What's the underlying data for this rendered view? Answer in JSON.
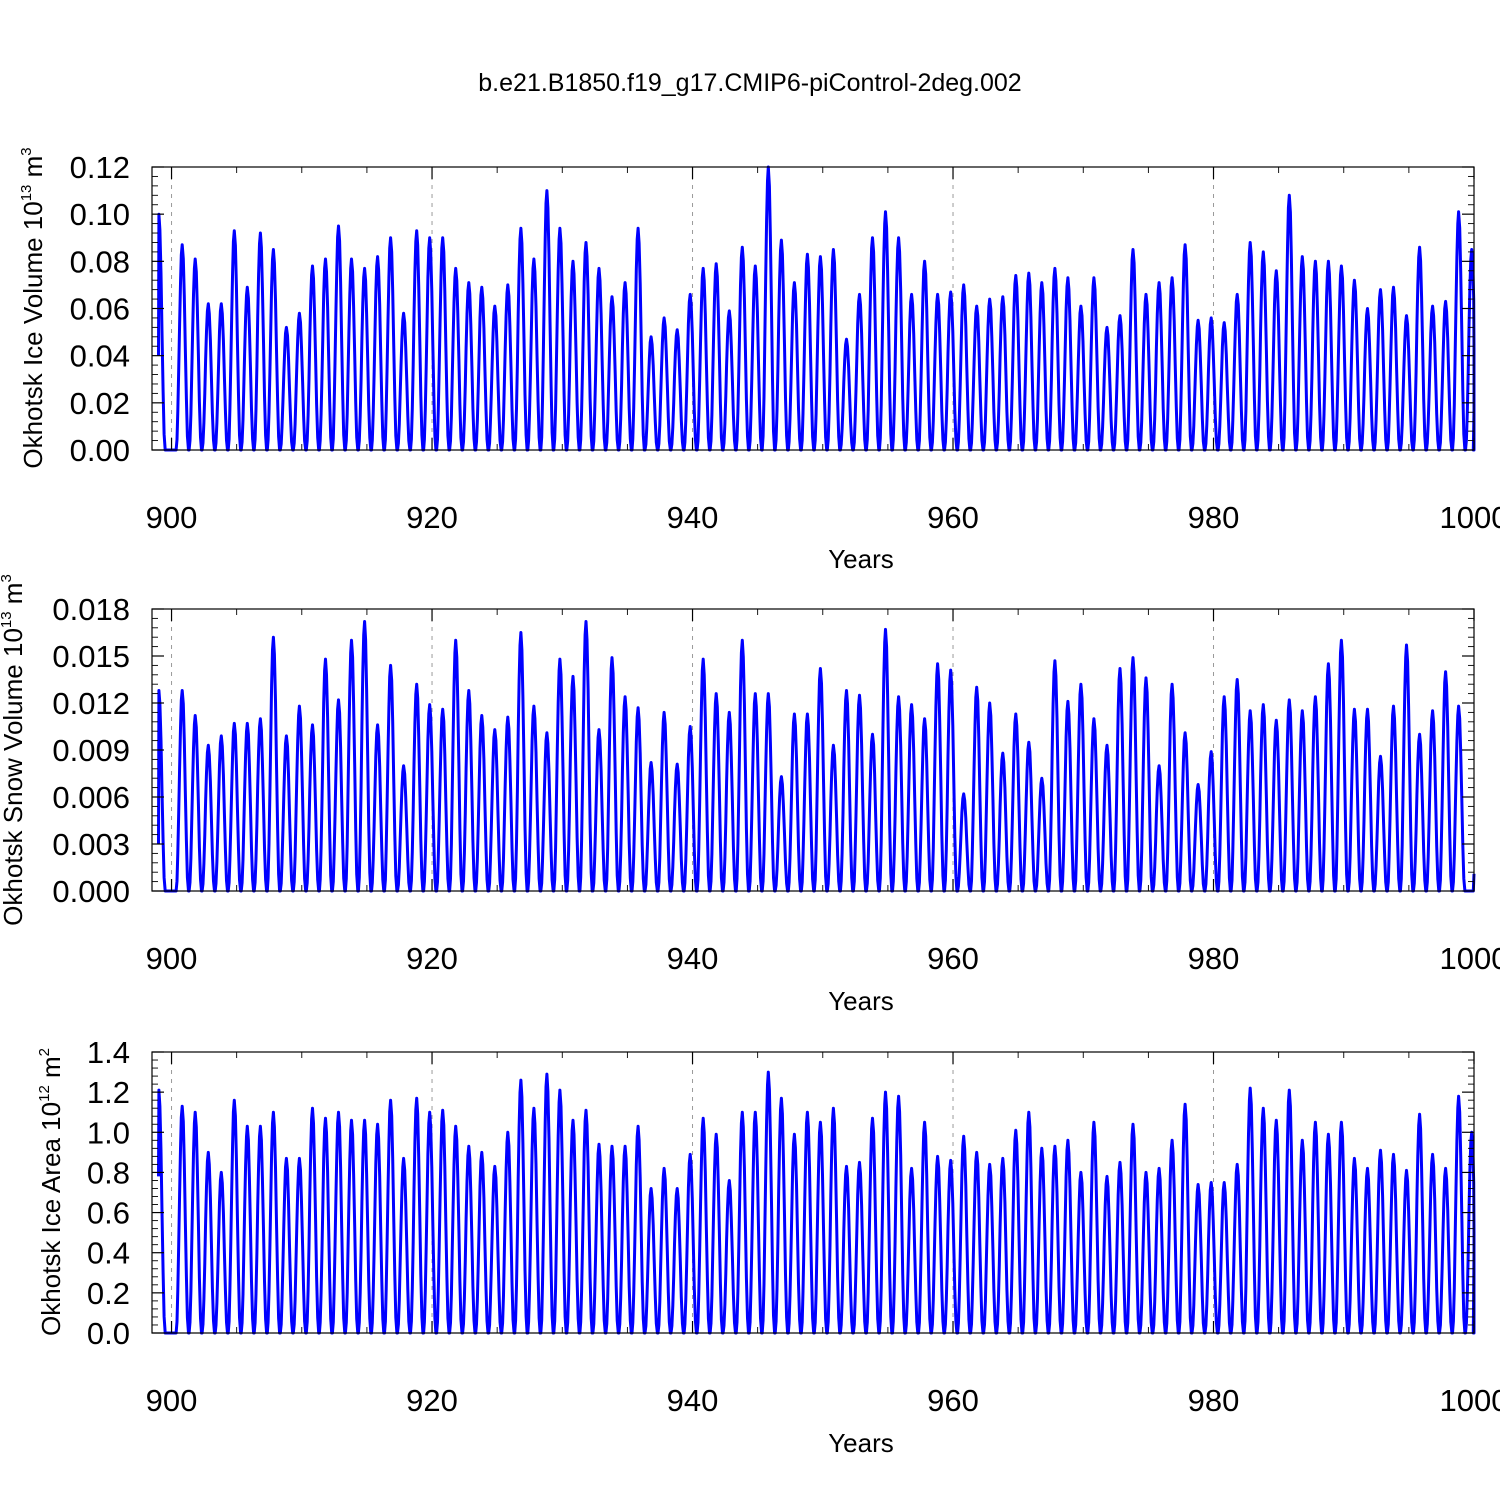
{
  "title": "b.e21.B1850.f19_g17.CMIP6-piControl-2deg.002",
  "colors": {
    "series": "#0000ff",
    "frame": "#000000",
    "grid": "#9a9a9a"
  },
  "chart_data": [
    {
      "type": "line",
      "ylabel": {
        "text": "Okhotsk Ice Volume 10",
        "exp": "13",
        "unit": " m",
        "unit_exp": "3"
      },
      "xlabel": "Years",
      "xlim": [
        898.5,
        1000
      ],
      "ylim": [
        0,
        0.12
      ],
      "yticks": [
        "0.00",
        "0.02",
        "0.04",
        "0.06",
        "0.08",
        "0.10",
        "0.12"
      ],
      "xticks": [
        "900",
        "920",
        "940",
        "960",
        "980",
        "1000"
      ],
      "grid": "dashed vertical lines at 900, 920, 940, 960, 980",
      "series": [
        {
          "start_year": 899,
          "start_value": 0.04,
          "annual_peaks": [
            0.1,
            0.087,
            0.081,
            0.062,
            0.062,
            0.093,
            0.069,
            0.092,
            0.085,
            0.052,
            0.058,
            0.078,
            0.081,
            0.095,
            0.081,
            0.077,
            0.082,
            0.09,
            0.058,
            0.093,
            0.09,
            0.09,
            0.077,
            0.071,
            0.069,
            0.061,
            0.07,
            0.094,
            0.081,
            0.11,
            0.094,
            0.08,
            0.088,
            0.077,
            0.065,
            0.071,
            0.094,
            0.048,
            0.056,
            0.051,
            0.066,
            0.077,
            0.079,
            0.059,
            0.086,
            0.078,
            0.12,
            0.089,
            0.071,
            0.083,
            0.082,
            0.085,
            0.047,
            0.066,
            0.09,
            0.101,
            0.09,
            0.066,
            0.08,
            0.066,
            0.067,
            0.07,
            0.061,
            0.064,
            0.065,
            0.074,
            0.075,
            0.071,
            0.077,
            0.073,
            0.061,
            0.073,
            0.052,
            0.057,
            0.085,
            0.066,
            0.071,
            0.073,
            0.087,
            0.055,
            0.056,
            0.054,
            0.066,
            0.088,
            0.084,
            0.076,
            0.108,
            0.082,
            0.08,
            0.08,
            0.078,
            0.072,
            0.06,
            0.068,
            0.069,
            0.057,
            0.086,
            0.061,
            0.063,
            0.101,
            0.085
          ],
          "end_value": 0.017
        }
      ]
    },
    {
      "type": "line",
      "ylabel": {
        "text": "Okhotsk Snow Volume 10",
        "exp": "13",
        "unit": " m",
        "unit_exp": "3"
      },
      "xlabel": "Years",
      "xlim": [
        898.5,
        1000
      ],
      "ylim": [
        0,
        0.018
      ],
      "yticks": [
        "0.000",
        "0.003",
        "0.006",
        "0.009",
        "0.012",
        "0.015",
        "0.018"
      ],
      "xticks": [
        "900",
        "920",
        "940",
        "960",
        "980",
        "1000"
      ],
      "grid": "dashed vertical lines at 900, 920, 940, 960, 980",
      "series": [
        {
          "start_year": 899,
          "start_value": 0.003,
          "annual_peaks": [
            0.0128,
            0.0128,
            0.0112,
            0.0093,
            0.0099,
            0.0107,
            0.0107,
            0.011,
            0.0162,
            0.0099,
            0.0118,
            0.0106,
            0.0148,
            0.0122,
            0.016,
            0.0172,
            0.0106,
            0.0144,
            0.008,
            0.0132,
            0.0119,
            0.0116,
            0.016,
            0.0128,
            0.0112,
            0.0103,
            0.0111,
            0.0165,
            0.0118,
            0.0101,
            0.0148,
            0.0137,
            0.0172,
            0.0103,
            0.0149,
            0.0124,
            0.0117,
            0.0082,
            0.0114,
            0.0081,
            0.0105,
            0.0148,
            0.0126,
            0.0114,
            0.016,
            0.0126,
            0.0126,
            0.0073,
            0.0113,
            0.0113,
            0.0142,
            0.0093,
            0.0128,
            0.0125,
            0.01,
            0.0167,
            0.0124,
            0.0119,
            0.011,
            0.0145,
            0.0141,
            0.0062,
            0.013,
            0.012,
            0.0088,
            0.0113,
            0.0095,
            0.0072,
            0.0147,
            0.0121,
            0.0132,
            0.011,
            0.0093,
            0.0142,
            0.0149,
            0.0136,
            0.008,
            0.0132,
            0.0101,
            0.0068,
            0.0089,
            0.0124,
            0.0135,
            0.0115,
            0.0119,
            0.0109,
            0.0122,
            0.0115,
            0.0124,
            0.0145,
            0.016,
            0.0116,
            0.0116,
            0.0086,
            0.0118,
            0.0157,
            0.01,
            0.0115,
            0.014,
            0.0118
          ],
          "end_value": 0.0011
        }
      ]
    },
    {
      "type": "line",
      "ylabel": {
        "text": "Okhotsk Ice Area 10",
        "exp": "12",
        "unit": " m",
        "unit_exp": "2"
      },
      "xlabel": "Years",
      "xlim": [
        898.5,
        1000
      ],
      "ylim": [
        0,
        1.4
      ],
      "yticks": [
        "0.0",
        "0.2",
        "0.4",
        "0.6",
        "0.8",
        "1.0",
        "1.2",
        "1.4"
      ],
      "xticks": [
        "900",
        "920",
        "940",
        "960",
        "980",
        "1000"
      ],
      "grid": "dashed vertical lines at 900, 920, 940, 960, 980",
      "series": [
        {
          "start_year": 899,
          "start_value": 0.78,
          "annual_peaks": [
            1.21,
            1.13,
            1.1,
            0.9,
            0.8,
            1.16,
            1.03,
            1.03,
            1.1,
            0.87,
            0.87,
            1.12,
            1.07,
            1.1,
            1.06,
            1.06,
            1.04,
            1.16,
            0.87,
            1.17,
            1.1,
            1.11,
            1.03,
            0.93,
            0.9,
            0.83,
            1.0,
            1.26,
            1.12,
            1.29,
            1.21,
            1.06,
            1.11,
            0.94,
            0.93,
            0.93,
            1.03,
            0.72,
            0.82,
            0.72,
            0.89,
            1.07,
            0.99,
            0.76,
            1.1,
            1.1,
            1.3,
            1.17,
            0.99,
            1.1,
            1.05,
            1.12,
            0.83,
            0.85,
            1.07,
            1.2,
            1.18,
            0.82,
            1.05,
            0.88,
            0.86,
            0.98,
            0.9,
            0.84,
            0.87,
            1.01,
            1.1,
            0.92,
            0.93,
            0.96,
            0.8,
            1.05,
            0.78,
            0.85,
            1.04,
            0.8,
            0.82,
            0.96,
            1.14,
            0.74,
            0.75,
            0.75,
            0.84,
            1.22,
            1.12,
            1.06,
            1.21,
            0.96,
            1.05,
            0.99,
            1.05,
            0.87,
            0.82,
            0.91,
            0.89,
            0.81,
            1.09,
            0.89,
            0.82,
            1.18,
            1.0
          ],
          "end_value": 0.41
        }
      ]
    }
  ]
}
